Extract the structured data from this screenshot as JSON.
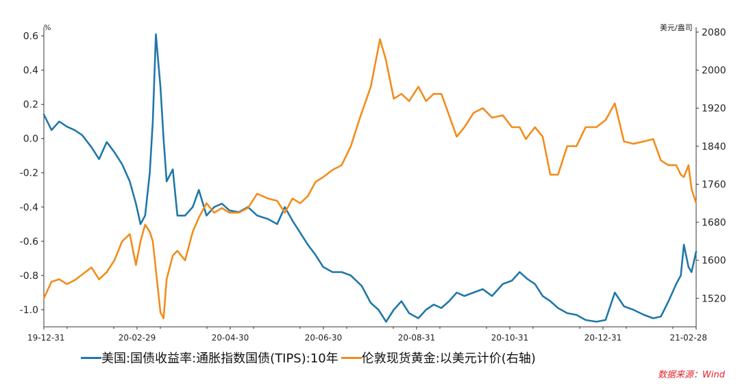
{
  "legend": {
    "series1": "美国:国债收益率:通胀指数国债(TIPS):10年",
    "series2": "伦敦现货黄金:以美元计价(右轴)"
  },
  "source_note": "数据来源：Wind",
  "colors": {
    "tips": "#1f77a8",
    "gold": "#f28c1b"
  },
  "chart_data": {
    "type": "line",
    "x_tick_labels": [
      "19-12-31",
      "20-02-29",
      "20-04-30",
      "20-06-30",
      "20-08-31",
      "20-10-31",
      "20-12-31",
      "21-02-28"
    ],
    "y_left": {
      "unit": "%",
      "range": [
        -1.1,
        0.65
      ],
      "ticks": [
        "0.6",
        "0.4",
        "0.2",
        "0.0",
        "-0.2",
        "-0.4",
        "-0.6",
        "-0.8",
        "-1.0"
      ]
    },
    "y_right": {
      "unit": "美元/盎司",
      "range": [
        1460,
        2090
      ],
      "ticks": [
        "2080",
        "2000",
        "1920",
        "1840",
        "1760",
        "1680",
        "1600",
        "1520"
      ]
    },
    "series": [
      {
        "name": "美国:国债收益率:通胀指数国债(TIPS):10年",
        "axis": "left",
        "x": [
          "2019-12-31",
          "2020-01-05",
          "2020-01-10",
          "2020-01-15",
          "2020-01-20",
          "2020-01-25",
          "2020-01-31",
          "2020-02-05",
          "2020-02-10",
          "2020-02-15",
          "2020-02-20",
          "2020-02-25",
          "2020-02-29",
          "2020-03-03",
          "2020-03-06",
          "2020-03-09",
          "2020-03-11",
          "2020-03-13",
          "2020-03-16",
          "2020-03-18",
          "2020-03-20",
          "2020-03-24",
          "2020-03-27",
          "2020-04-01",
          "2020-04-06",
          "2020-04-10",
          "2020-04-15",
          "2020-04-20",
          "2020-04-25",
          "2020-04-30",
          "2020-05-06",
          "2020-05-12",
          "2020-05-18",
          "2020-05-25",
          "2020-05-31",
          "2020-06-05",
          "2020-06-10",
          "2020-06-15",
          "2020-06-20",
          "2020-06-25",
          "2020-06-30",
          "2020-07-06",
          "2020-07-12",
          "2020-07-18",
          "2020-07-25",
          "2020-07-31",
          "2020-08-05",
          "2020-08-10",
          "2020-08-15",
          "2020-08-20",
          "2020-08-25",
          "2020-08-31",
          "2020-09-05",
          "2020-09-10",
          "2020-09-15",
          "2020-09-20",
          "2020-09-25",
          "2020-09-30",
          "2020-10-06",
          "2020-10-12",
          "2020-10-18",
          "2020-10-25",
          "2020-10-31",
          "2020-11-05",
          "2020-11-10",
          "2020-11-15",
          "2020-11-20",
          "2020-11-25",
          "2020-11-30",
          "2020-12-06",
          "2020-12-12",
          "2020-12-18",
          "2020-12-25",
          "2020-12-31",
          "2021-01-06",
          "2021-01-12",
          "2021-01-18",
          "2021-01-25",
          "2021-01-31",
          "2021-02-05",
          "2021-02-10",
          "2021-02-15",
          "2021-02-18",
          "2021-02-20",
          "2021-02-23",
          "2021-02-25",
          "2021-02-28"
        ],
        "values": [
          0.14,
          0.05,
          0.1,
          0.07,
          0.05,
          0.02,
          -0.05,
          -0.12,
          -0.02,
          -0.08,
          -0.15,
          -0.25,
          -0.38,
          -0.5,
          -0.45,
          -0.2,
          0.1,
          0.61,
          0.3,
          0.0,
          -0.25,
          -0.18,
          -0.45,
          -0.45,
          -0.4,
          -0.3,
          -0.45,
          -0.4,
          -0.38,
          -0.42,
          -0.43,
          -0.4,
          -0.45,
          -0.47,
          -0.5,
          -0.4,
          -0.48,
          -0.55,
          -0.62,
          -0.68,
          -0.75,
          -0.78,
          -0.78,
          -0.8,
          -0.86,
          -0.96,
          -1.0,
          -1.07,
          -1.0,
          -0.95,
          -1.02,
          -1.05,
          -1.0,
          -0.97,
          -0.99,
          -0.95,
          -0.9,
          -0.92,
          -0.9,
          -0.88,
          -0.92,
          -0.85,
          -0.83,
          -0.78,
          -0.82,
          -0.85,
          -0.92,
          -0.95,
          -0.99,
          -1.02,
          -1.03,
          -1.06,
          -1.07,
          -1.06,
          -0.9,
          -0.98,
          -1.0,
          -1.03,
          -1.05,
          -1.04,
          -0.95,
          -0.85,
          -0.8,
          -0.62,
          -0.75,
          -0.78,
          -0.66
        ]
      },
      {
        "name": "伦敦现货黄金:以美元计价(右轴)",
        "axis": "right",
        "x": [
          "2019-12-31",
          "2020-01-05",
          "2020-01-10",
          "2020-01-15",
          "2020-01-20",
          "2020-01-25",
          "2020-01-31",
          "2020-02-05",
          "2020-02-10",
          "2020-02-15",
          "2020-02-20",
          "2020-02-25",
          "2020-02-29",
          "2020-03-03",
          "2020-03-06",
          "2020-03-09",
          "2020-03-11",
          "2020-03-13",
          "2020-03-16",
          "2020-03-18",
          "2020-03-20",
          "2020-03-24",
          "2020-03-27",
          "2020-04-01",
          "2020-04-06",
          "2020-04-10",
          "2020-04-15",
          "2020-04-20",
          "2020-04-25",
          "2020-04-30",
          "2020-05-06",
          "2020-05-12",
          "2020-05-18",
          "2020-05-25",
          "2020-05-31",
          "2020-06-05",
          "2020-06-10",
          "2020-06-15",
          "2020-06-20",
          "2020-06-25",
          "2020-06-30",
          "2020-07-06",
          "2020-07-12",
          "2020-07-18",
          "2020-07-24",
          "2020-07-31",
          "2020-08-06",
          "2020-08-10",
          "2020-08-15",
          "2020-08-20",
          "2020-08-25",
          "2020-08-31",
          "2020-09-05",
          "2020-09-10",
          "2020-09-15",
          "2020-09-20",
          "2020-09-25",
          "2020-09-30",
          "2020-10-06",
          "2020-10-12",
          "2020-10-18",
          "2020-10-25",
          "2020-10-31",
          "2020-11-05",
          "2020-11-09",
          "2020-11-15",
          "2020-11-20",
          "2020-11-25",
          "2020-11-30",
          "2020-12-06",
          "2020-12-12",
          "2020-12-18",
          "2020-12-25",
          "2020-12-31",
          "2021-01-06",
          "2021-01-12",
          "2021-01-18",
          "2021-01-25",
          "2021-01-31",
          "2021-02-05",
          "2021-02-10",
          "2021-02-15",
          "2021-02-18",
          "2021-02-20",
          "2021-02-23",
          "2021-02-25",
          "2021-02-28"
        ],
        "values": [
          1520,
          1555,
          1560,
          1550,
          1558,
          1570,
          1585,
          1560,
          1575,
          1600,
          1640,
          1655,
          1590,
          1640,
          1675,
          1660,
          1640,
          1580,
          1490,
          1478,
          1560,
          1610,
          1620,
          1600,
          1660,
          1690,
          1720,
          1700,
          1710,
          1700,
          1700,
          1710,
          1740,
          1730,
          1725,
          1700,
          1730,
          1720,
          1735,
          1765,
          1775,
          1790,
          1800,
          1840,
          1900,
          1965,
          2065,
          2020,
          1940,
          1950,
          1935,
          1965,
          1935,
          1950,
          1950,
          1905,
          1860,
          1880,
          1910,
          1920,
          1900,
          1905,
          1880,
          1880,
          1855,
          1880,
          1860,
          1780,
          1780,
          1840,
          1840,
          1880,
          1880,
          1895,
          1930,
          1850,
          1845,
          1850,
          1855,
          1810,
          1800,
          1800,
          1780,
          1775,
          1800,
          1750,
          1720
        ]
      }
    ]
  }
}
